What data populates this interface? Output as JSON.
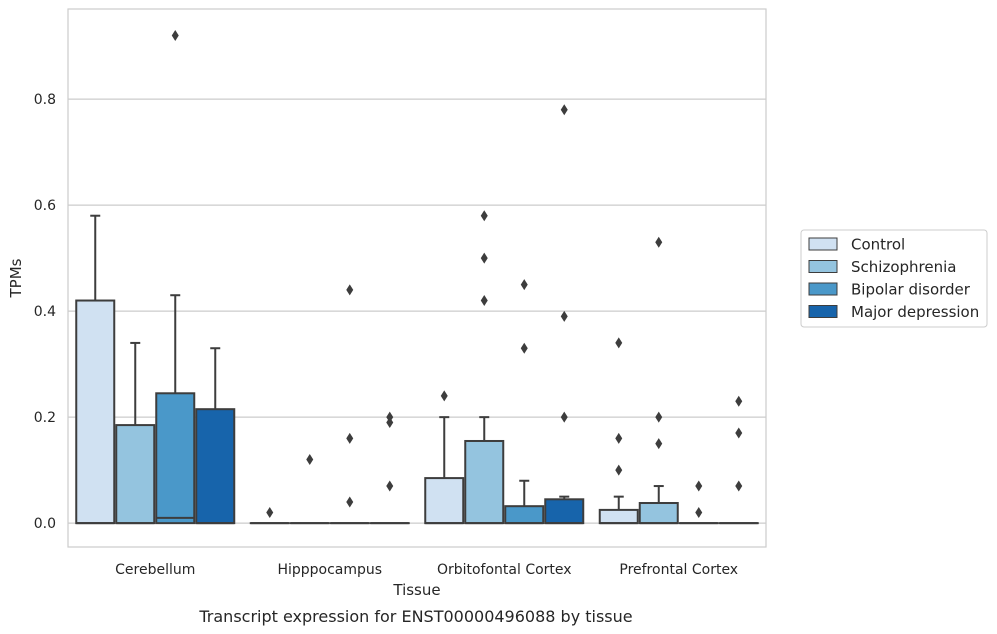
{
  "caption": "Transcript expression for ENST00000496088 by tissue",
  "chart_data": {
    "type": "box",
    "title": "",
    "xlabel": "Tissue",
    "ylabel": "TPMs",
    "ylim": [
      -0.045,
      0.97
    ],
    "yticks": [
      0.0,
      0.2,
      0.4,
      0.6,
      0.8
    ],
    "ytick_labels": [
      "0.0",
      "0.2",
      "0.4",
      "0.6",
      "0.8"
    ],
    "grid": "horizontal",
    "legend_position": "right",
    "categories": [
      "Cerebellum",
      "Hipppocampus",
      "Orbitofontal Cortex",
      "Prefrontal Cortex"
    ],
    "series": [
      {
        "name": "Control",
        "color": "#d0e1f2",
        "boxes": [
          {
            "q1": 0.0,
            "median": 0.0,
            "q3": 0.42,
            "whisker_high": 0.58,
            "outliers": []
          },
          {
            "q1": 0.0,
            "median": 0.0,
            "q3": 0.0,
            "whisker_high": 0.0,
            "outliers": [
              0.02
            ]
          },
          {
            "q1": 0.0,
            "median": 0.0,
            "q3": 0.085,
            "whisker_high": 0.2,
            "outliers": [
              0.24
            ]
          },
          {
            "q1": 0.0,
            "median": 0.0,
            "q3": 0.025,
            "whisker_high": 0.05,
            "outliers": [
              0.1,
              0.16,
              0.34
            ]
          }
        ]
      },
      {
        "name": "Schizophrenia",
        "color": "#94c4df",
        "boxes": [
          {
            "q1": 0.0,
            "median": 0.0,
            "q3": 0.185,
            "whisker_high": 0.34,
            "outliers": []
          },
          {
            "q1": 0.0,
            "median": 0.0,
            "q3": 0.0,
            "whisker_high": 0.0,
            "outliers": [
              0.12
            ]
          },
          {
            "q1": 0.0,
            "median": 0.0,
            "q3": 0.155,
            "whisker_high": 0.2,
            "outliers": [
              0.42,
              0.5,
              0.58
            ]
          },
          {
            "q1": 0.0,
            "median": 0.0,
            "q3": 0.038,
            "whisker_high": 0.07,
            "outliers": [
              0.15,
              0.2,
              0.53
            ]
          }
        ]
      },
      {
        "name": "Bipolar disorder",
        "color": "#4a98c9",
        "boxes": [
          {
            "q1": 0.0,
            "median": 0.01,
            "q3": 0.245,
            "whisker_high": 0.43,
            "outliers": [
              0.92
            ]
          },
          {
            "q1": 0.0,
            "median": 0.0,
            "q3": 0.0,
            "whisker_high": 0.0,
            "outliers": [
              0.04,
              0.16,
              0.44
            ]
          },
          {
            "q1": 0.0,
            "median": 0.0,
            "q3": 0.032,
            "whisker_high": 0.08,
            "outliers": [
              0.33,
              0.45
            ]
          },
          {
            "q1": 0.0,
            "median": 0.0,
            "q3": 0.0,
            "whisker_high": 0.0,
            "outliers": [
              0.02,
              0.07
            ]
          }
        ]
      },
      {
        "name": "Major depression",
        "color": "#1764ab",
        "boxes": [
          {
            "q1": 0.0,
            "median": 0.0,
            "q3": 0.215,
            "whisker_high": 0.33,
            "outliers": []
          },
          {
            "q1": 0.0,
            "median": 0.0,
            "q3": 0.0,
            "whisker_high": 0.0,
            "outliers": [
              0.07,
              0.19,
              0.2
            ]
          },
          {
            "q1": 0.0,
            "median": 0.0,
            "q3": 0.045,
            "whisker_high": 0.05,
            "outliers": [
              0.2,
              0.39,
              0.78
            ]
          },
          {
            "q1": 0.0,
            "median": 0.0,
            "q3": 0.0,
            "whisker_high": 0.0,
            "outliers": [
              0.07,
              0.17,
              0.23
            ]
          }
        ]
      }
    ],
    "style": {
      "line_color": "#3d3d3d",
      "grid_color": "#cccccc",
      "frame_color": "#cccccc",
      "text_color": "#262626"
    }
  }
}
